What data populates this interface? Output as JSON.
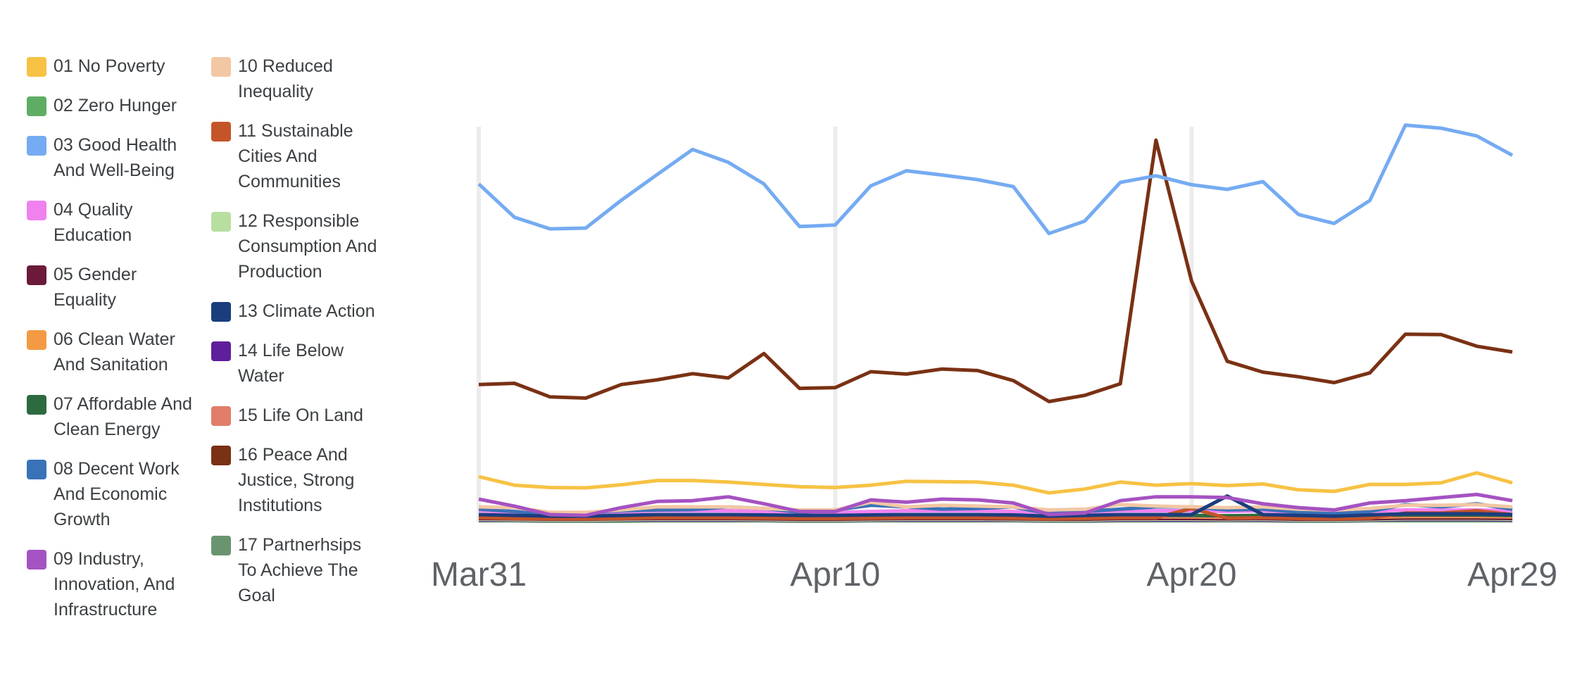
{
  "chart_data": {
    "type": "line",
    "title": "",
    "xlabel": "",
    "ylabel": "",
    "x_ticks": [
      "Mar31",
      "Apr10",
      "Apr20",
      "Apr29"
    ],
    "x_start": "Mar31",
    "x_end": "Apr29",
    "grid": "vertical gridlines at x tick positions",
    "legend_placement": "left",
    "legend_columns": [
      [
        "01 No Poverty",
        "02 Zero Hunger",
        "03 Good Health\nAnd Well-Being",
        "04 Quality\nEducation",
        "05 Gender\nEquality",
        "06 Clean Water\nAnd Sanitation",
        "07 Affordable And\nClean Energy",
        "08 Decent Work\nAnd Economic\nGrowth",
        "09 Industry,\nInnovation, And\nInfrastructure"
      ],
      [
        "10 Reduced\nInequality",
        "11 Sustainable\nCities And\nCommunities",
        "12 Responsible\nConsumption And\nProduction",
        "13 Climate Action",
        "14 Life Below\nWater",
        "15 Life On Land",
        "16 Peace And\nJustice, Strong\nInstitutions",
        "17 Partnerhsips\nTo Achieve The\nGoal"
      ]
    ],
    "series": [
      {
        "name": "01 No Poverty",
        "color": "#f7c244",
        "values": [
          118,
          96,
          90,
          89,
          97,
          108,
          108,
          104,
          98,
          92,
          90,
          96,
          106,
          105,
          104,
          96,
          76,
          86,
          104,
          96,
          100,
          95,
          99,
          84,
          80,
          98,
          98,
          102,
          128,
          102
        ]
      },
      {
        "name": "02 Zero Hunger",
        "color": "#5fad64",
        "values": [
          4,
          4,
          3,
          3,
          3,
          4,
          4,
          4,
          4,
          3,
          3,
          4,
          4,
          4,
          4,
          4,
          3,
          3,
          4,
          4,
          4,
          4,
          4,
          3,
          3,
          4,
          4,
          4,
          4,
          4
        ]
      },
      {
        "name": "03 Good Health And Well-Being",
        "color": "#75abf2",
        "values": [
          874,
          788,
          758,
          760,
          832,
          898,
          963,
          930,
          874,
          764,
          768,
          869,
          908,
          897,
          885,
          867,
          746,
          778,
          878,
          895,
          872,
          860,
          880,
          795,
          772,
          831,
          1026,
          1018,
          998,
          948
        ]
      },
      {
        "name": "04 Quality Education",
        "color": "#f082f0",
        "values": [
          30,
          26,
          24,
          24,
          26,
          30,
          30,
          30,
          28,
          26,
          26,
          28,
          30,
          30,
          30,
          28,
          24,
          26,
          30,
          30,
          30,
          28,
          30,
          26,
          24,
          28,
          32,
          32,
          32,
          30
        ]
      },
      {
        "name": "05 Gender Equality",
        "color": "#6b1a3a",
        "values": [
          10,
          9,
          8,
          8,
          9,
          10,
          10,
          10,
          9,
          8,
          8,
          9,
          10,
          10,
          10,
          9,
          8,
          8,
          10,
          10,
          10,
          9,
          10,
          8,
          8,
          9,
          11,
          11,
          11,
          10
        ]
      },
      {
        "name": "06 Clean Water And Sanitation",
        "color": "#f59a44",
        "values": [
          14,
          12,
          11,
          11,
          12,
          14,
          14,
          14,
          13,
          12,
          12,
          13,
          14,
          14,
          14,
          13,
          11,
          12,
          14,
          14,
          14,
          13,
          14,
          12,
          11,
          13,
          15,
          15,
          15,
          14
        ]
      },
      {
        "name": "07 Affordable And Clean Energy",
        "color": "#2d6a40",
        "values": [
          18,
          16,
          15,
          15,
          16,
          18,
          18,
          18,
          17,
          16,
          16,
          17,
          18,
          18,
          18,
          17,
          15,
          16,
          18,
          18,
          18,
          17,
          18,
          16,
          15,
          17,
          19,
          19,
          19,
          18
        ]
      },
      {
        "name": "08 Decent Work And Economic Growth",
        "color": "#3a72b8",
        "values": [
          34,
          28,
          22,
          24,
          30,
          32,
          33,
          40,
          36,
          26,
          32,
          44,
          40,
          34,
          36,
          40,
          22,
          28,
          34,
          40,
          40,
          32,
          34,
          26,
          22,
          28,
          46,
          40,
          48,
          34
        ]
      },
      {
        "name": "09 Industry, Innovation, And Infrastructure",
        "color": "#a552c2",
        "values": [
          60,
          42,
          20,
          18,
          38,
          54,
          56,
          66,
          48,
          28,
          28,
          58,
          52,
          60,
          58,
          50,
          20,
          24,
          56,
          66,
          66,
          64,
          48,
          38,
          32,
          50,
          56,
          64,
          72,
          56
        ]
      },
      {
        "name": "10 Reduced Inequality",
        "color": "#f2c7a4",
        "values": [
          40,
          38,
          26,
          26,
          32,
          40,
          40,
          40,
          36,
          32,
          32,
          52,
          40,
          44,
          42,
          40,
          32,
          34,
          46,
          42,
          40,
          38,
          40,
          34,
          32,
          36,
          44,
          44,
          46,
          40
        ]
      },
      {
        "name": "11 Sustainable Cities And Communities",
        "color": "#c4552a",
        "values": [
          12,
          10,
          9,
          9,
          10,
          12,
          12,
          12,
          11,
          10,
          10,
          11,
          12,
          12,
          12,
          11,
          9,
          10,
          12,
          12,
          36,
          11,
          12,
          10,
          9,
          11,
          24,
          24,
          30,
          20
        ]
      },
      {
        "name": "12 Responsible Consumption And Production",
        "color": "#b8dfa0",
        "values": [
          8,
          7,
          6,
          6,
          7,
          8,
          8,
          8,
          7,
          6,
          6,
          7,
          8,
          8,
          8,
          7,
          6,
          6,
          8,
          8,
          8,
          7,
          8,
          6,
          6,
          7,
          9,
          9,
          9,
          8
        ]
      },
      {
        "name": "13 Climate Action",
        "color": "#1a3d7e",
        "values": [
          20,
          18,
          16,
          16,
          18,
          20,
          20,
          20,
          19,
          18,
          18,
          19,
          20,
          20,
          20,
          19,
          16,
          18,
          20,
          20,
          20,
          68,
          20,
          18,
          16,
          19,
          22,
          22,
          22,
          20
        ]
      },
      {
        "name": "14 Life Below Water",
        "color": "#5e1f9a",
        "values": [
          6,
          6,
          5,
          5,
          6,
          6,
          6,
          6,
          6,
          5,
          5,
          6,
          6,
          6,
          6,
          6,
          5,
          5,
          6,
          6,
          6,
          6,
          6,
          5,
          5,
          6,
          7,
          7,
          7,
          6
        ]
      },
      {
        "name": "15 Life On Land",
        "color": "#e07e6a",
        "values": [
          16,
          14,
          13,
          13,
          14,
          16,
          16,
          16,
          15,
          14,
          14,
          15,
          16,
          16,
          16,
          15,
          13,
          14,
          16,
          16,
          16,
          15,
          16,
          14,
          13,
          15,
          17,
          17,
          17,
          16
        ]
      },
      {
        "name": "16 Peace And Justice, Strong Institutions",
        "color": "#7a3114",
        "values": [
          356,
          359,
          324,
          321,
          356,
          368,
          384,
          373,
          436,
          346,
          348,
          389,
          383,
          396,
          392,
          366,
          312,
          328,
          358,
          987,
          623,
          416,
          388,
          376,
          361,
          386,
          486,
          485,
          455,
          440
        ]
      },
      {
        "name": "17 Partnerhsips To Achieve The Goal",
        "color": "#6a9470",
        "values": [
          5,
          5,
          4,
          4,
          5,
          5,
          5,
          5,
          5,
          4,
          4,
          5,
          5,
          5,
          5,
          5,
          4,
          4,
          5,
          5,
          5,
          5,
          5,
          4,
          4,
          5,
          6,
          6,
          6,
          5
        ]
      }
    ],
    "ylim": [
      0,
      1040
    ]
  }
}
